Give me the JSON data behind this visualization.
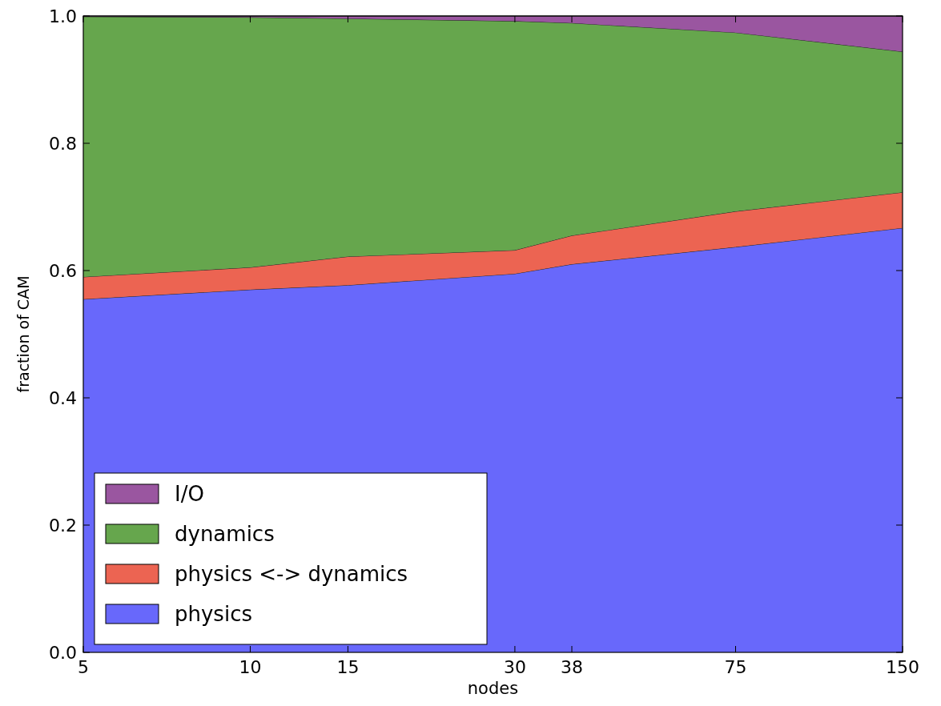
{
  "chart_data": {
    "type": "area",
    "stacked": true,
    "xlabel": "nodes",
    "ylabel": "fraction of CAM",
    "x": [
      5,
      10,
      15,
      30,
      38,
      75,
      150
    ],
    "series": [
      {
        "name": "physics",
        "color": "#6868fb",
        "values": [
          0.555,
          0.57,
          0.577,
          0.595,
          0.61,
          0.637,
          0.667
        ]
      },
      {
        "name": "physics <-> dynamics",
        "color": "#ec6452",
        "values": [
          0.035,
          0.035,
          0.045,
          0.037,
          0.045,
          0.056,
          0.056
        ]
      },
      {
        "name": "dynamics",
        "color": "#66a64d",
        "values": [
          0.409,
          0.393,
          0.374,
          0.36,
          0.334,
          0.281,
          0.221
        ]
      },
      {
        "name": "I/O",
        "color": "#9a56a0",
        "values": [
          0.001,
          0.002,
          0.004,
          0.008,
          0.011,
          0.026,
          0.056
        ]
      }
    ],
    "log": "x",
    "xlim": [
      5,
      150
    ],
    "xticks": [
      5,
      10,
      15,
      30,
      38,
      75,
      150
    ],
    "ylim": [
      0,
      1
    ],
    "yticks": [
      {
        "value": 0,
        "label": "0.0"
      },
      {
        "value": 0.2,
        "label": "0.2"
      },
      {
        "value": 0.4,
        "label": "0.4"
      },
      {
        "value": 0.6,
        "label": "0.6"
      },
      {
        "value": 0.8,
        "label": "0.8"
      },
      {
        "value": 1,
        "label": "1.0"
      }
    ],
    "grid": false,
    "legend": "bottom left"
  }
}
